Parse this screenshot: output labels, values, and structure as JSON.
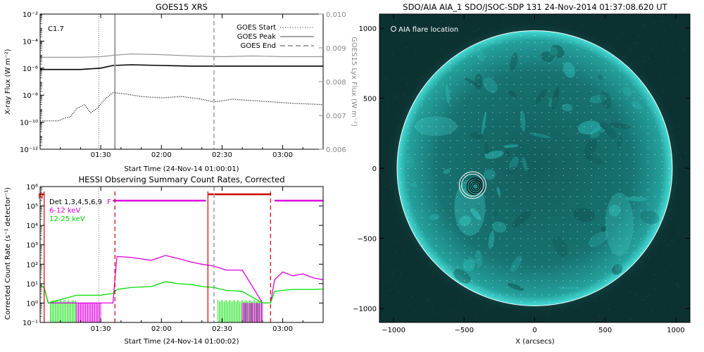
{
  "chart_data": [
    {
      "type": "line",
      "title": "GOES15 XRS",
      "xlabel": "Start Time (24-Nov-14 01:00:01)",
      "ylabel": "X-ray Flux (W m⁻²)",
      "ylabel_right": "GOES15 Lyx Flux (W m⁻²)",
      "x_ticks": [
        "01:30",
        "02:00",
        "02:30",
        "03:00"
      ],
      "x_tick_minutes": [
        30,
        60,
        90,
        120
      ],
      "xlim_minutes": [
        0,
        140
      ],
      "ylim_log": [
        -12,
        -2
      ],
      "y_ticks_exp": [
        -12,
        -10,
        -8,
        -6,
        -4,
        -2
      ],
      "y_tick_labels": [
        "10⁻¹²",
        "10⁻¹⁰",
        "10⁻⁸",
        "10⁻⁶",
        "10⁻⁴",
        "10⁻²"
      ],
      "y2lim": [
        0.006,
        0.01
      ],
      "y2_ticks": [
        "0.006",
        "0.007",
        "0.008",
        "0.009",
        "0.010"
      ],
      "annotation": "C1.7",
      "legend": {
        "placement": "top-right",
        "entries": [
          {
            "name": "GOES Start",
            "style": "dotted"
          },
          {
            "name": "GOES Peak",
            "style": "solid"
          },
          {
            "name": "GOES End",
            "style": "dashed"
          }
        ]
      },
      "markers_minutes": {
        "start": 29,
        "peak": 37,
        "end": 86
      },
      "series": [
        {
          "name": "long",
          "color": "#000000",
          "style": "solid",
          "x": [
            0,
            10,
            20,
            30,
            36,
            45,
            60,
            75,
            90,
            105,
            120,
            140
          ],
          "log_y": [
            -6.1,
            -6.1,
            -6.1,
            -6.0,
            -5.8,
            -5.75,
            -5.8,
            -5.85,
            -5.85,
            -5.85,
            -5.85,
            -5.85
          ]
        },
        {
          "name": "lyx",
          "color": "#999999",
          "style": "solid",
          "x": [
            0,
            10,
            20,
            30,
            36,
            45,
            60,
            75,
            90,
            105,
            120,
            140
          ],
          "log_y": [
            -5.2,
            -5.2,
            -5.2,
            -5.15,
            -5.05,
            -4.95,
            -5.0,
            -5.1,
            -5.15,
            -5.1,
            -5.15,
            -5.15
          ]
        },
        {
          "name": "short",
          "color": "#000000",
          "style": "dotted",
          "x": [
            0,
            5,
            9,
            12,
            15,
            18,
            22,
            25,
            28,
            32,
            36,
            42,
            50,
            60,
            70,
            80,
            86,
            95,
            105,
            115,
            125,
            140
          ],
          "log_y": [
            -9.9,
            -9.9,
            -9.9,
            -9.7,
            -9.6,
            -9.0,
            -8.7,
            -9.3,
            -9.0,
            -8.3,
            -7.8,
            -7.9,
            -8.1,
            -8.2,
            -8.1,
            -8.3,
            -8.5,
            -8.3,
            -8.4,
            -8.5,
            -8.6,
            -8.7
          ]
        }
      ]
    },
    {
      "type": "line",
      "title": "HESSI Observing Summary Count Rates, Corrected",
      "xlabel": "Start Time (24-Nov-14 01:00:02)",
      "ylabel": "Corrected Count Rate (s⁻¹ detector⁻¹)",
      "x_ticks": [
        "01:30",
        "02:00",
        "02:30",
        "03:00"
      ],
      "x_tick_minutes": [
        30,
        60,
        90,
        120
      ],
      "xlim_minutes": [
        0,
        140
      ],
      "ylim_log": [
        -1,
        6
      ],
      "y_tick_labels": [
        "10⁻¹",
        "10⁰",
        "10¹",
        "10²",
        "10³",
        "10⁴",
        "10⁵",
        "10⁶"
      ],
      "legend_text": [
        {
          "label": "Det 1,3,4,5,6,9",
          "color": "#000000"
        },
        {
          "label": "6-12 keV",
          "color": "#e000e0"
        },
        {
          "label": "12-25 keV",
          "color": "#00e000"
        }
      ],
      "flag_labels": {
        "night": "N",
        "flare": "F"
      },
      "night_intervals": [
        [
          0,
          2
        ],
        [
          83,
          114
        ]
      ],
      "flare_interval": [
        36,
        82
      ],
      "markers_minutes": {
        "start": 29,
        "end": 86
      },
      "red_solid_lines": [
        2,
        83
      ],
      "red_dashed_lines": [
        37,
        114
      ],
      "series": [
        {
          "name": "6-12 keV",
          "color": "#e000e0",
          "x": [
            0,
            2,
            4,
            36,
            38,
            45,
            55,
            62,
            68,
            75,
            80,
            86,
            92,
            100,
            110,
            114,
            116,
            120,
            125,
            130,
            135,
            140
          ],
          "log_y": [
            0.9,
            0.8,
            0.0,
            0.0,
            2.4,
            2.35,
            2.2,
            2.45,
            2.3,
            2.1,
            2.0,
            1.9,
            1.7,
            1.7,
            0.0,
            0.0,
            1.2,
            1.6,
            1.4,
            1.5,
            1.3,
            1.2
          ]
        },
        {
          "name": "12-25 keV",
          "color": "#00e000",
          "x": [
            0,
            2,
            4,
            18,
            30,
            36,
            38,
            45,
            55,
            62,
            68,
            75,
            80,
            86,
            92,
            100,
            110,
            114,
            116,
            120,
            125,
            130,
            135,
            140
          ],
          "log_y": [
            0.9,
            0.8,
            0.0,
            0.4,
            0.4,
            0.5,
            0.7,
            0.8,
            0.85,
            1.1,
            1.0,
            0.95,
            0.85,
            0.8,
            0.65,
            0.6,
            0.0,
            0.0,
            0.6,
            0.65,
            0.7,
            0.7,
            0.7,
            0.72
          ]
        }
      ]
    },
    {
      "type": "image",
      "title": "SDO/AIA AIA_1 SDO/JSOC-SDP 131 24-Nov-2014 01:37:08.620 UT",
      "legend_label": "AIA flare location",
      "xlabel": "X (arcsecs)",
      "x_ticks": [
        -1000,
        -500,
        0,
        500,
        1000
      ],
      "y_ticks": [
        -1000,
        -500,
        0,
        500,
        1000
      ],
      "xlim": [
        -1100,
        1100
      ],
      "ylim": [
        -1100,
        1100
      ],
      "solar_radius": 975,
      "flare_location": {
        "x": -420,
        "y": -130
      },
      "contour_radii": [
        20,
        32,
        45,
        60,
        78,
        95
      ],
      "color_background": "#0c3131",
      "color_disk": "#1a8280",
      "color_limb": "#4fe6e0"
    }
  ]
}
